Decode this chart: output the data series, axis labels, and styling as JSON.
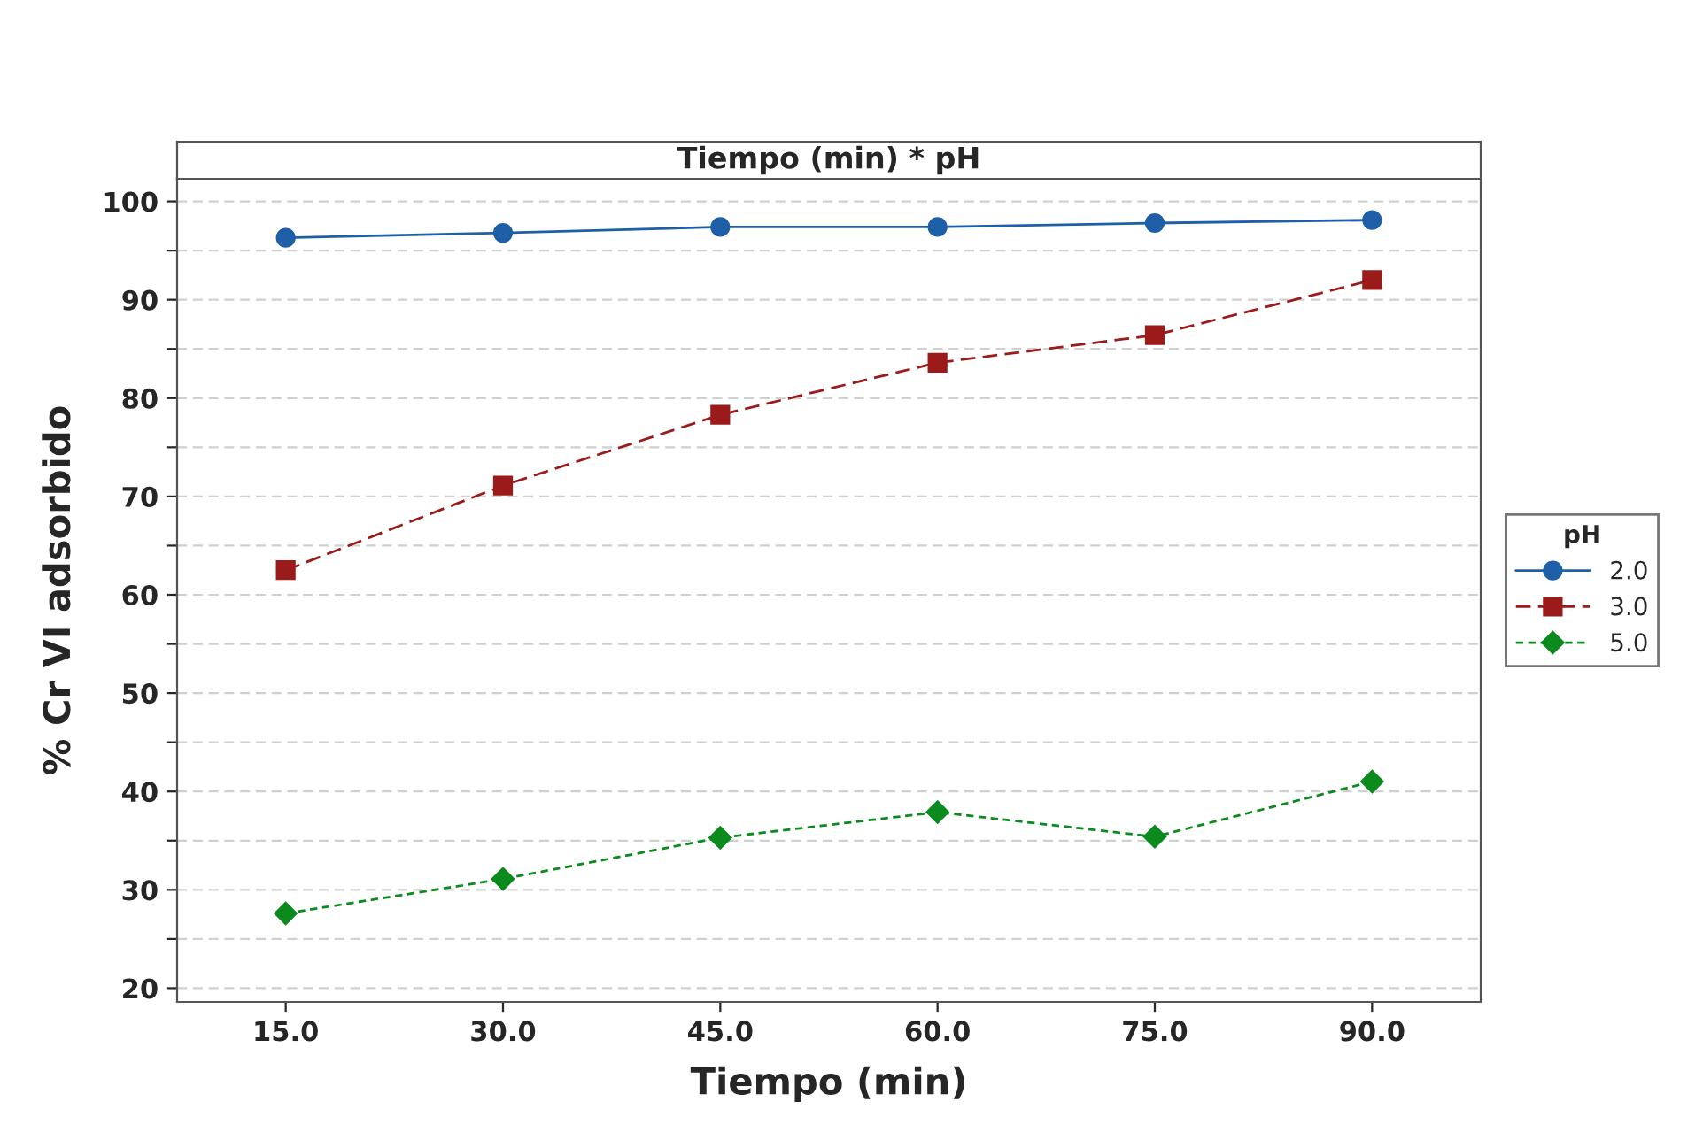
{
  "chart_data": {
    "type": "line",
    "title": "Tiempo (min) * pH",
    "xlabel": "Tiempo (min)",
    "ylabel": "% Cr VI adsorbido",
    "legend_title": "pH",
    "legend": "right",
    "grid": "y",
    "categories": [
      "15.0",
      "30.0",
      "45.0",
      "60.0",
      "75.0",
      "90.0"
    ],
    "ylim": [
      18.6,
      102.3
    ],
    "yticks": [
      20,
      {
        "value": 25,
        "label": null
      },
      30,
      {
        "value": 35,
        "label": null
      },
      40,
      {
        "value": 45,
        "label": null
      },
      50,
      {
        "value": 55,
        "label": null
      },
      60,
      {
        "value": 65,
        "label": null
      },
      70,
      {
        "value": 75,
        "label": null
      },
      80,
      {
        "value": 85,
        "label": null
      },
      90,
      {
        "value": 95,
        "label": null
      },
      100
    ],
    "series": [
      {
        "name": "2.0",
        "color": "#1f5fa8",
        "marker": "circle",
        "line_style": "solid",
        "values": [
          96.3,
          96.8,
          97.4,
          97.4,
          97.8,
          98.1
        ]
      },
      {
        "name": "3.0",
        "color": "#9b1b1b",
        "marker": "square",
        "line_style": "dashed",
        "values": [
          62.5,
          71.1,
          78.3,
          83.6,
          86.4,
          92.0
        ]
      },
      {
        "name": "5.0",
        "color": "#0b8a1e",
        "marker": "diamond",
        "line_style": "dotted",
        "values": [
          27.6,
          31.1,
          35.3,
          37.9,
          35.4,
          41.0
        ]
      }
    ]
  }
}
